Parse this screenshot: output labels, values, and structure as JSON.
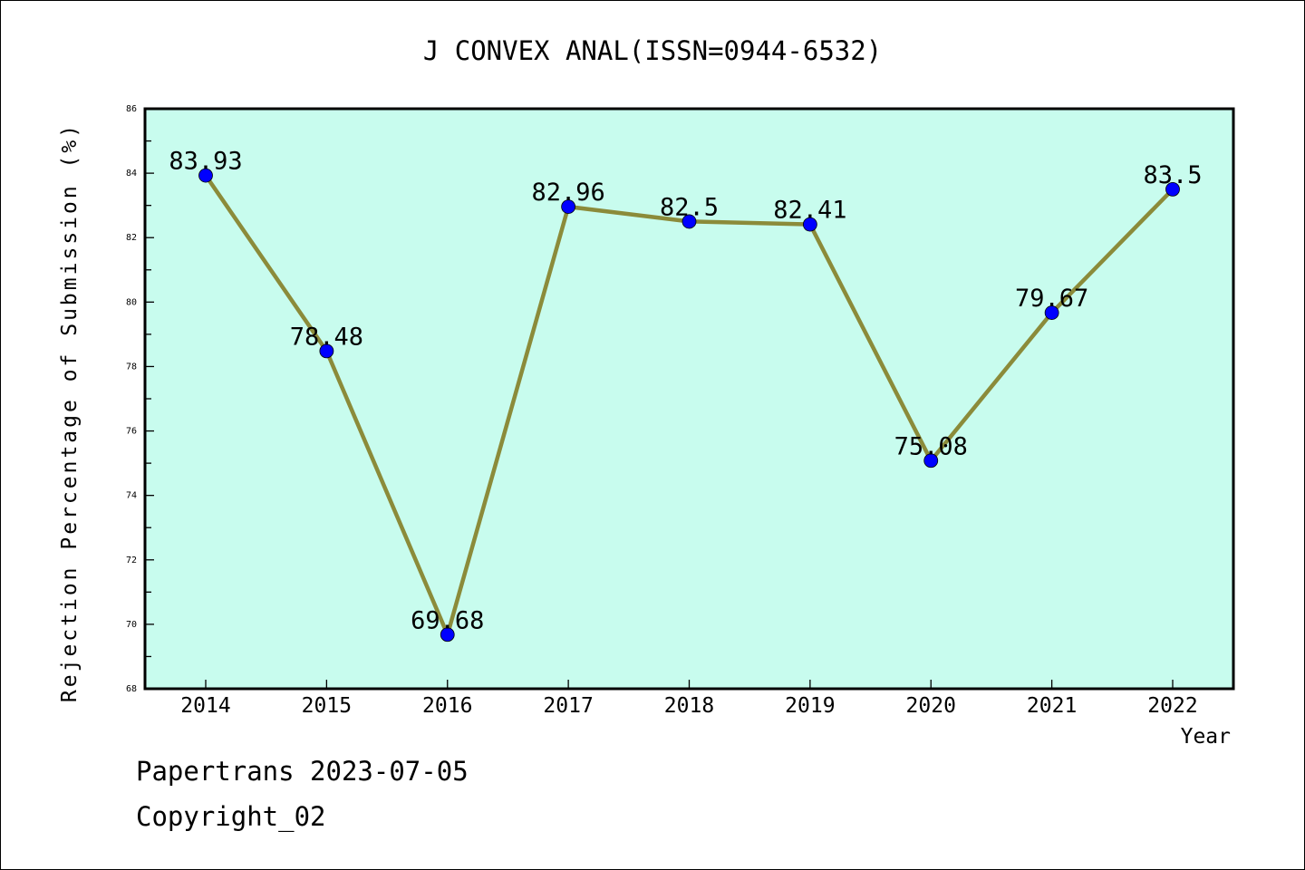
{
  "chart_data": {
    "type": "line",
    "title": "J CONVEX ANAL(ISSN=0944-6532)",
    "xlabel": "Year",
    "ylabel": "Rejection Percentage of Submission (%)",
    "categories": [
      "2014",
      "2015",
      "2016",
      "2017",
      "2018",
      "2019",
      "2020",
      "2021",
      "2022"
    ],
    "values": [
      83.93,
      78.48,
      69.68,
      82.96,
      82.5,
      82.41,
      75.08,
      79.67,
      83.5
    ],
    "data_labels": [
      "83.93",
      "78.48",
      "69.68",
      "82.96",
      "82.5",
      "82.41",
      "75.08",
      "79.67",
      "83.5"
    ],
    "ylim": [
      68,
      86
    ],
    "yticks": [
      68,
      70,
      72,
      74,
      76,
      78,
      80,
      82,
      84,
      86
    ],
    "grid": false,
    "legend": "none",
    "colors": {
      "plot_background": "#c8fcee",
      "line": "#8b8b3a",
      "marker": "#0000ff"
    }
  },
  "footer": {
    "line1": "Papertrans 2023-07-05",
    "line2": "Copyright_02"
  }
}
